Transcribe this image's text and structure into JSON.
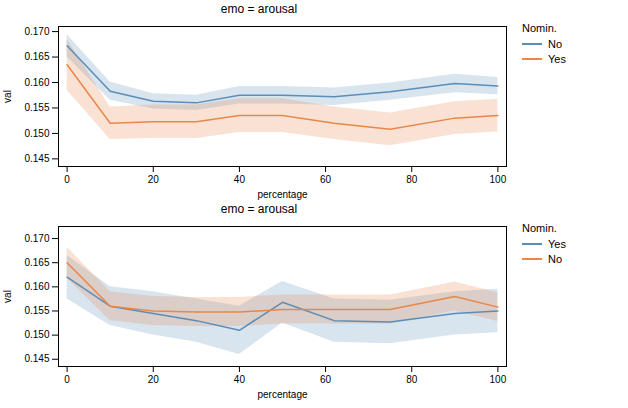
{
  "chart_data": [
    {
      "type": "line",
      "title": "emo = arousal",
      "xlabel": "percentage",
      "ylabel": "val",
      "legend_title": "Nomin.",
      "legend": "right",
      "grid": false,
      "x": [
        0,
        10,
        20,
        30,
        40,
        50,
        62,
        75,
        90,
        100
      ],
      "series": [
        {
          "name": "No",
          "color": "#5b8db8",
          "values": [
            0.1672,
            0.1583,
            0.1563,
            0.156,
            0.1575,
            0.1575,
            0.1572,
            0.1582,
            0.1598,
            0.1593
          ],
          "lower": [
            0.165,
            0.1565,
            0.1548,
            0.1545,
            0.1558,
            0.1558,
            0.1555,
            0.1565,
            0.158,
            0.1576
          ],
          "upper": [
            0.1694,
            0.1601,
            0.1578,
            0.1575,
            0.1592,
            0.1592,
            0.1589,
            0.1599,
            0.1616,
            0.161
          ]
        },
        {
          "name": "Yes",
          "color": "#e8874a",
          "values": [
            0.1635,
            0.152,
            0.1523,
            0.1523,
            0.1535,
            0.1535,
            0.152,
            0.1508,
            0.153,
            0.1535
          ],
          "lower": [
            0.1585,
            0.1488,
            0.149,
            0.149,
            0.1502,
            0.1502,
            0.1488,
            0.1476,
            0.1498,
            0.1503
          ],
          "upper": [
            0.1685,
            0.1552,
            0.1556,
            0.1556,
            0.1568,
            0.1568,
            0.1552,
            0.154,
            0.1562,
            0.1567
          ]
        }
      ],
      "xlim": [
        -2,
        102
      ],
      "xticks": [
        0,
        20,
        40,
        60,
        80,
        100
      ],
      "ylim": [
        0.1435,
        0.171
      ],
      "yticks": [
        {
          "value": 0.145,
          "label": "0.145"
        },
        {
          "value": 0.15,
          "label": "0.150"
        },
        {
          "value": 0.155,
          "label": "0.155"
        },
        {
          "value": 0.16,
          "label": "0.160"
        },
        {
          "value": 0.165,
          "label": "0.165"
        },
        {
          "value": 0.17,
          "label": "0.170"
        }
      ]
    },
    {
      "type": "line",
      "title": "emo = arousal",
      "xlabel": "percentage",
      "ylabel": "val",
      "legend_title": "Nomin.",
      "legend": "right",
      "grid": false,
      "x": [
        0,
        10,
        20,
        30,
        40,
        50,
        62,
        75,
        90,
        100
      ],
      "series": [
        {
          "name": "Yes",
          "color": "#5b8db8",
          "values": [
            0.162,
            0.156,
            0.1545,
            0.153,
            0.151,
            0.1568,
            0.153,
            0.1527,
            0.1545,
            0.155
          ],
          "lower": [
            0.1575,
            0.152,
            0.15,
            0.1485,
            0.146,
            0.1525,
            0.1485,
            0.1482,
            0.15,
            0.1505
          ],
          "upper": [
            0.1665,
            0.16,
            0.159,
            0.1575,
            0.156,
            0.1611,
            0.1575,
            0.1572,
            0.159,
            0.1595
          ]
        },
        {
          "name": "No",
          "color": "#e8874a",
          "values": [
            0.165,
            0.156,
            0.155,
            0.1548,
            0.1548,
            0.1553,
            0.1553,
            0.1553,
            0.158,
            0.1558
          ],
          "lower": [
            0.1618,
            0.153,
            0.152,
            0.1518,
            0.1518,
            0.1523,
            0.1523,
            0.1523,
            0.155,
            0.1528
          ],
          "upper": [
            0.1682,
            0.159,
            0.158,
            0.1578,
            0.1578,
            0.1583,
            0.1583,
            0.1583,
            0.161,
            0.1588
          ]
        }
      ],
      "xlim": [
        -2,
        102
      ],
      "xticks": [
        0,
        20,
        40,
        60,
        80,
        100
      ],
      "ylim": [
        0.1435,
        0.1725
      ],
      "yticks": [
        {
          "value": 0.145,
          "label": "0.145"
        },
        {
          "value": 0.15,
          "label": "0.150"
        },
        {
          "value": 0.155,
          "label": "0.155"
        },
        {
          "value": 0.16,
          "label": "0.160"
        },
        {
          "value": 0.165,
          "label": "0.165"
        },
        {
          "value": 0.17,
          "label": "0.170"
        }
      ]
    }
  ]
}
